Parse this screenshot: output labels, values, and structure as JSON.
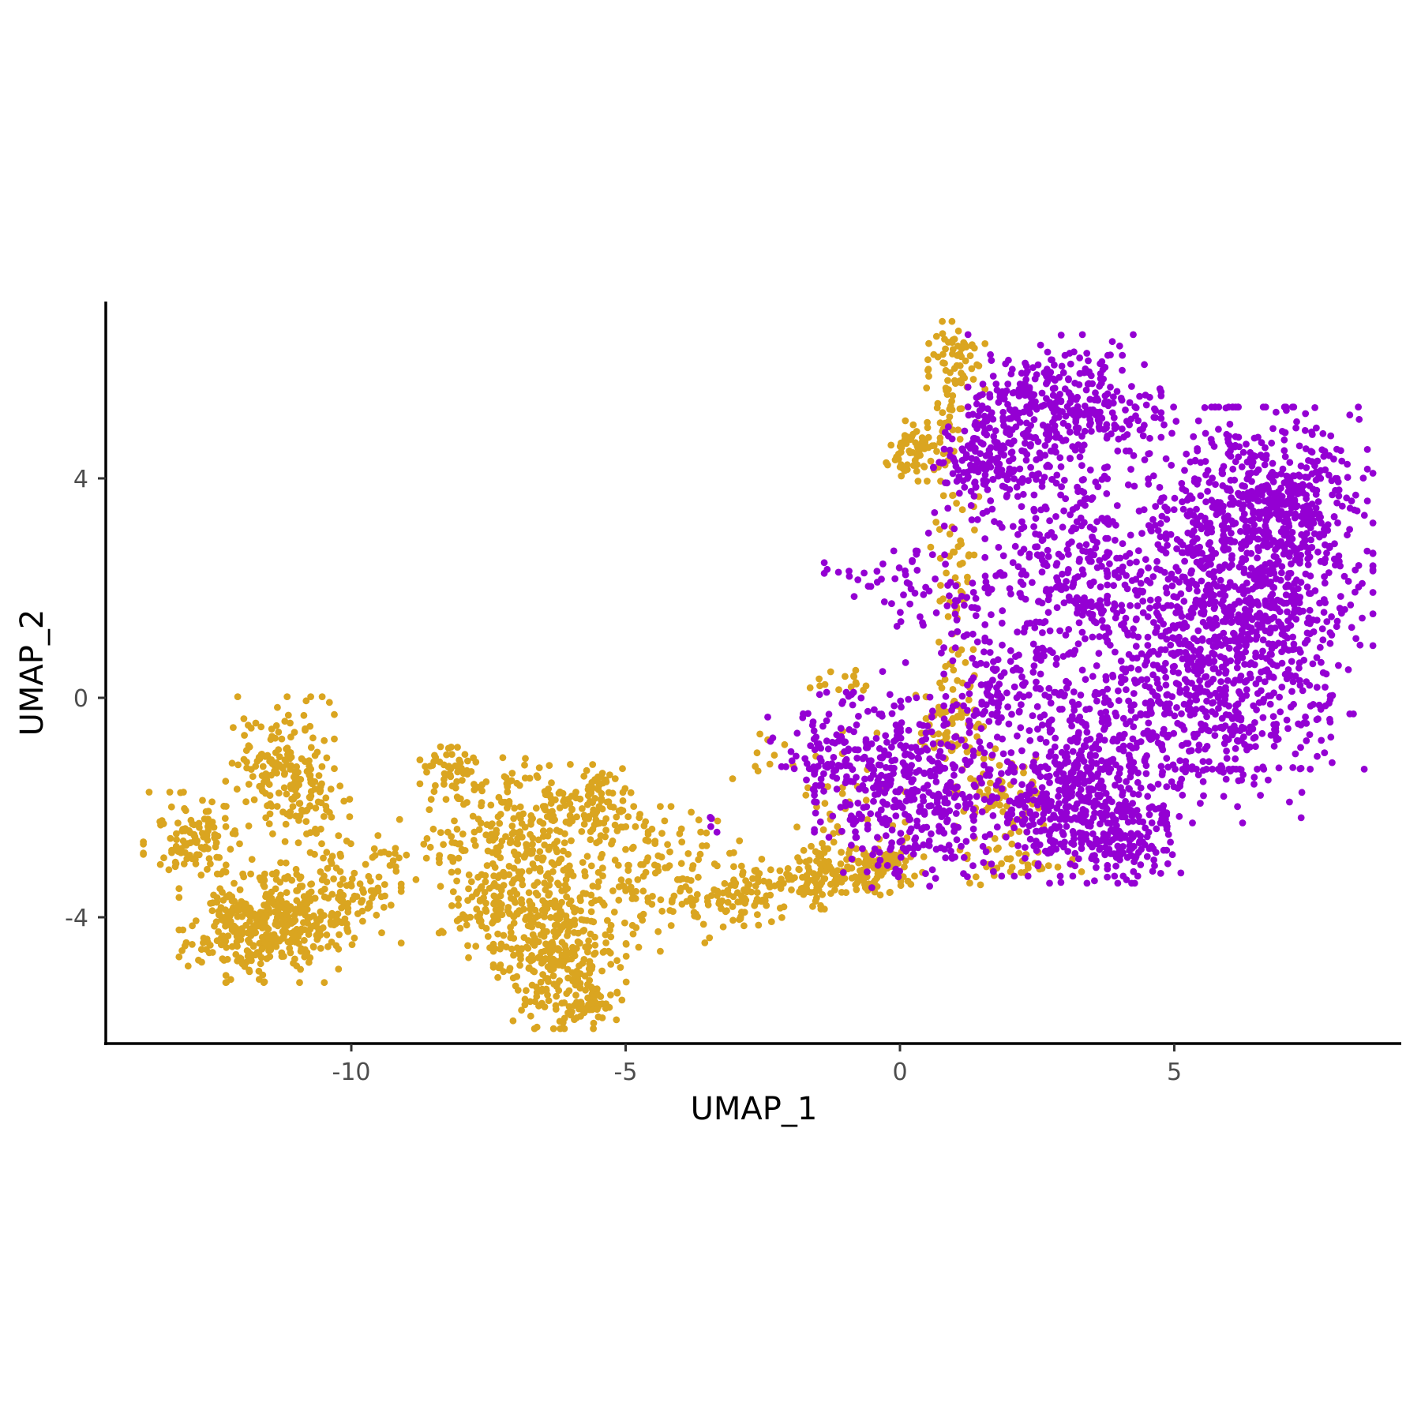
{
  "chart_data": {
    "type": "scatter",
    "title": "",
    "xlabel": "UMAP_1",
    "ylabel": "UMAP_2",
    "xlim": [
      -14.5,
      9.2
    ],
    "ylim": [
      -6.3,
      7.3
    ],
    "x_ticks": [
      -10,
      -5,
      0,
      5
    ],
    "x_tick_labels": [
      "-10",
      "-5",
      "0",
      "5"
    ],
    "y_ticks": [
      4,
      0,
      -4
    ],
    "y_tick_labels": [
      "4",
      "0",
      "-4"
    ],
    "grid": false,
    "legend": "none",
    "series": [
      {
        "color": "#DAA520",
        "clusters": [
          {
            "cx": -11.6,
            "cy": -4.2,
            "sx": 0.7,
            "sy": 0.45,
            "n": 380
          },
          {
            "cx": -11.3,
            "cy": -1.3,
            "sx": 0.45,
            "sy": 0.6,
            "n": 150
          },
          {
            "cx": -12.8,
            "cy": -2.6,
            "sx": 0.45,
            "sy": 0.4,
            "n": 110
          },
          {
            "cx": -10.3,
            "cy": -3.7,
            "sx": 0.55,
            "sy": 0.4,
            "n": 100
          },
          {
            "cx": -10.8,
            "cy": -2.1,
            "sx": 0.35,
            "sy": 0.6,
            "n": 60
          },
          {
            "cx": -9.0,
            "cy": -2.9,
            "sx": 0.7,
            "sy": 0.4,
            "n": 35
          },
          {
            "cx": -6.2,
            "cy": -4.6,
            "sx": 0.55,
            "sy": 0.65,
            "n": 300
          },
          {
            "cx": -5.6,
            "cy": -5.6,
            "sx": 0.25,
            "sy": 0.15,
            "n": 45
          },
          {
            "cx": -6.7,
            "cy": -2.3,
            "sx": 0.75,
            "sy": 0.55,
            "n": 220
          },
          {
            "cx": -7.3,
            "cy": -3.6,
            "sx": 0.5,
            "sy": 0.6,
            "n": 160
          },
          {
            "cx": -8.2,
            "cy": -1.3,
            "sx": 0.25,
            "sy": 0.25,
            "n": 50
          },
          {
            "cx": -5.4,
            "cy": -1.9,
            "sx": 0.4,
            "sy": 0.35,
            "n": 60
          },
          {
            "cx": -4.5,
            "cy": -3.3,
            "sx": 0.9,
            "sy": 0.6,
            "n": 160
          },
          {
            "cx": -2.8,
            "cy": -3.7,
            "sx": 0.55,
            "sy": 0.25,
            "n": 70
          },
          {
            "cx": -1.6,
            "cy": -3.3,
            "sx": 0.65,
            "sy": 0.25,
            "n": 110
          },
          {
            "cx": -0.4,
            "cy": -3.0,
            "sx": 0.45,
            "sy": 0.25,
            "n": 90
          },
          {
            "cx": 1.0,
            "cy": 6.2,
            "sx": 0.25,
            "sy": 0.3,
            "n": 60
          },
          {
            "cx": 0.3,
            "cy": 4.5,
            "sx": 0.25,
            "sy": 0.25,
            "n": 70
          },
          {
            "cx": 0.9,
            "cy": 5.2,
            "sx": 0.25,
            "sy": 0.35,
            "n": 30
          },
          {
            "cx": 1.0,
            "cy": 1.8,
            "sx": 0.2,
            "sy": 1.6,
            "n": 80
          },
          {
            "cx": 0.9,
            "cy": -0.5,
            "sx": 0.35,
            "sy": 0.35,
            "n": 60
          },
          {
            "cx": 1.9,
            "cy": -1.7,
            "sx": 0.4,
            "sy": 0.45,
            "n": 70
          },
          {
            "cx": 2.1,
            "cy": -3.0,
            "sx": 0.55,
            "sy": 0.2,
            "n": 40
          },
          {
            "cx": -0.9,
            "cy": -2.0,
            "sx": 0.6,
            "sy": 0.7,
            "n": 40
          },
          {
            "cx": -2.5,
            "cy": -1.1,
            "sx": 0.25,
            "sy": 0.2,
            "n": 10
          },
          {
            "cx": -1.0,
            "cy": 0.3,
            "sx": 0.3,
            "sy": 0.1,
            "n": 15
          }
        ]
      },
      {
        "color": "#9400D3",
        "clusters": [
          {
            "cx": 6.2,
            "cy": 2.0,
            "sx": 1.1,
            "sy": 1.5,
            "n": 1150
          },
          {
            "cx": 7.2,
            "cy": 3.6,
            "sx": 0.6,
            "sy": 0.6,
            "n": 200
          },
          {
            "cx": 5.2,
            "cy": -0.3,
            "sx": 1.2,
            "sy": 0.9,
            "n": 350
          },
          {
            "cx": 3.0,
            "cy": 5.3,
            "sx": 0.8,
            "sy": 0.6,
            "n": 350
          },
          {
            "cx": 1.6,
            "cy": 4.4,
            "sx": 0.45,
            "sy": 0.6,
            "n": 180
          },
          {
            "cx": 3.2,
            "cy": 2.3,
            "sx": 0.75,
            "sy": 1.0,
            "n": 320
          },
          {
            "cx": 3.1,
            "cy": -1.6,
            "sx": 0.8,
            "sy": 0.75,
            "n": 420
          },
          {
            "cx": 3.8,
            "cy": -2.5,
            "sx": 0.6,
            "sy": 0.4,
            "n": 180
          },
          {
            "cx": 0.2,
            "cy": -1.7,
            "sx": 0.8,
            "sy": 0.8,
            "n": 380
          },
          {
            "cx": -1.2,
            "cy": -1.0,
            "sx": 0.55,
            "sy": 0.5,
            "n": 110
          },
          {
            "cx": 0.9,
            "cy": 1.8,
            "sx": 0.7,
            "sy": 0.6,
            "n": 70
          },
          {
            "cx": -0.5,
            "cy": 2.3,
            "sx": 0.4,
            "sy": 0.25,
            "n": 22
          },
          {
            "cx": 1.9,
            "cy": 0.1,
            "sx": 0.5,
            "sy": 0.5,
            "n": 100
          },
          {
            "cx": -3.5,
            "cy": -2.4,
            "sx": 0.1,
            "sy": 0.15,
            "n": 4
          }
        ]
      }
    ]
  }
}
